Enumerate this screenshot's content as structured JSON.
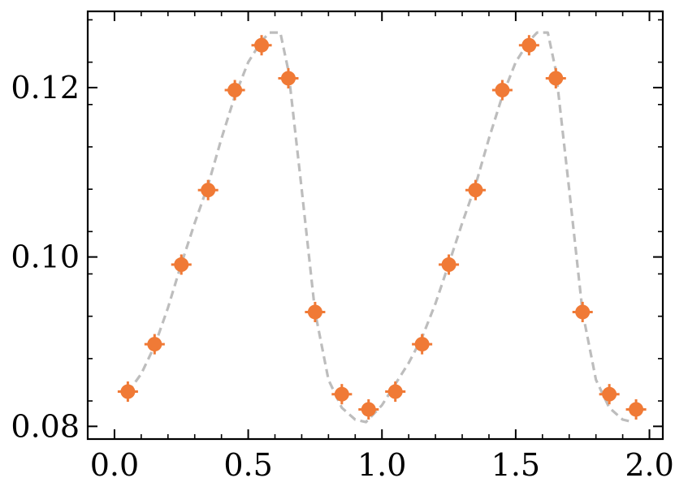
{
  "chart_data": {
    "type": "scatter",
    "title": "",
    "xlabel": "",
    "ylabel": "",
    "xlim": [
      -0.1,
      2.05
    ],
    "ylim": [
      0.0785,
      0.129
    ],
    "xticks": [
      "0.0",
      "0.5",
      "1.0",
      "1.5",
      "2.0"
    ],
    "xtick_values": [
      0.0,
      0.5,
      1.0,
      1.5,
      2.0
    ],
    "yticks": [
      "0.08",
      "0.10",
      "0.12"
    ],
    "ytick_values": [
      0.08,
      0.1,
      0.12
    ],
    "grid": false,
    "series": [
      {
        "kind": "errorbar-points",
        "color": "#f07a36",
        "x_error": 0.038,
        "y_error": 0.0012,
        "x": [
          0.05,
          0.15,
          0.25,
          0.35,
          0.45,
          0.55,
          0.65,
          0.75,
          0.85,
          0.95,
          1.05,
          1.15,
          1.25,
          1.35,
          1.45,
          1.55,
          1.65,
          1.75,
          1.85,
          1.95
        ],
        "y": [
          0.0841,
          0.0897,
          0.0991,
          0.1079,
          0.1197,
          0.125,
          0.1211,
          0.0935,
          0.0838,
          0.082,
          0.0841,
          0.0897,
          0.0991,
          0.1079,
          0.1197,
          0.125,
          0.1211,
          0.0935,
          0.0838,
          0.082
        ]
      },
      {
        "kind": "dashed-line",
        "color": "#bdbdbd",
        "x": [
          0.05,
          0.1,
          0.15,
          0.2,
          0.25,
          0.3,
          0.35,
          0.4,
          0.45,
          0.5,
          0.55,
          0.58,
          0.62,
          0.65,
          0.7,
          0.75,
          0.8,
          0.85,
          0.9,
          0.94,
          1.0,
          1.05,
          1.1,
          1.15,
          1.2,
          1.25,
          1.3,
          1.35,
          1.4,
          1.45,
          1.5,
          1.55,
          1.58,
          1.62,
          1.65,
          1.7,
          1.75,
          1.8,
          1.85,
          1.9,
          1.94
        ],
        "y": [
          0.084,
          0.0862,
          0.0895,
          0.094,
          0.0992,
          0.104,
          0.1085,
          0.114,
          0.119,
          0.123,
          0.1255,
          0.1265,
          0.1265,
          0.122,
          0.108,
          0.0935,
          0.0855,
          0.0822,
          0.0808,
          0.0805,
          0.0825,
          0.085,
          0.0875,
          0.0905,
          0.0945,
          0.0992,
          0.104,
          0.1085,
          0.114,
          0.119,
          0.123,
          0.1255,
          0.1265,
          0.1265,
          0.122,
          0.108,
          0.0935,
          0.0855,
          0.0822,
          0.0808,
          0.0805
        ]
      }
    ]
  }
}
